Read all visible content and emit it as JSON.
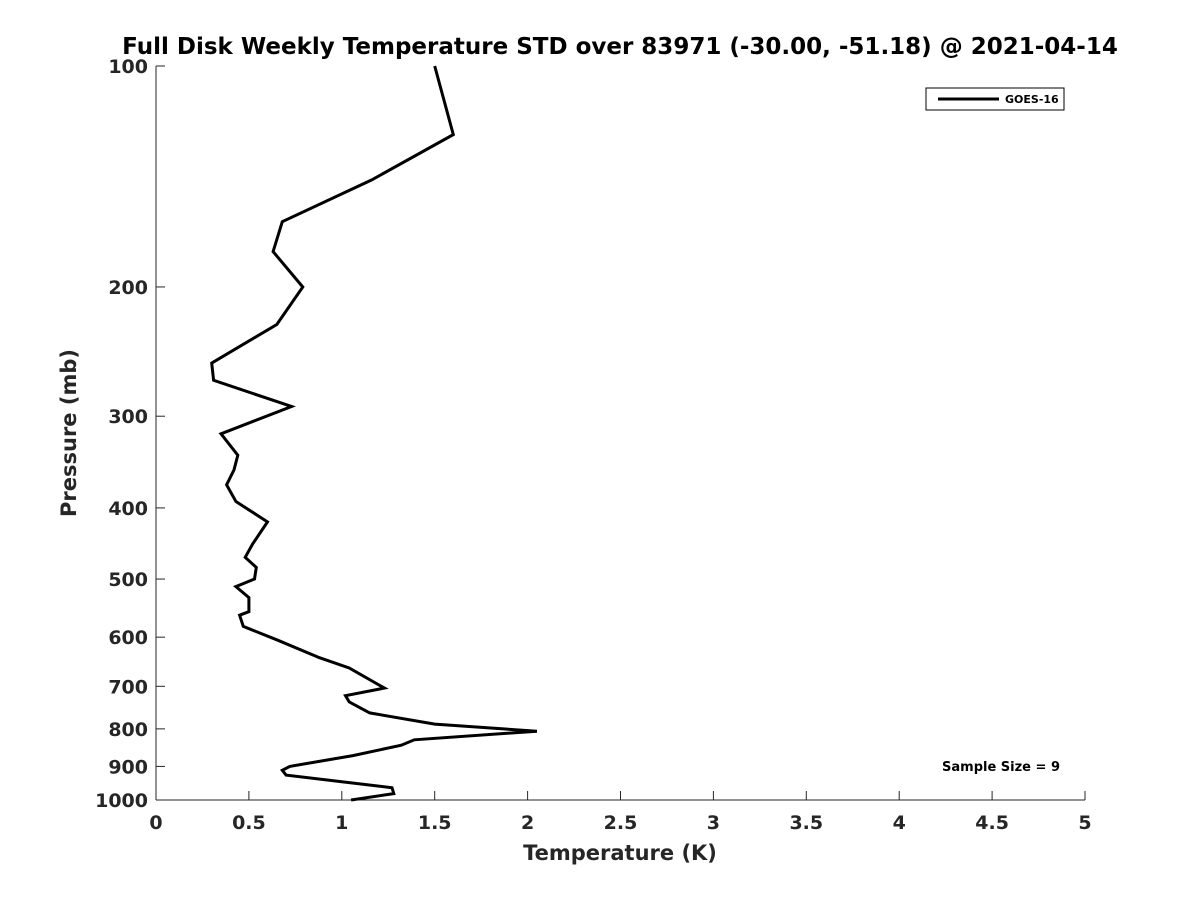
{
  "chart_data": {
    "type": "line",
    "title": "Full Disk Weekly Temperature STD over 83971 (-30.00, -51.18) @ 2021-04-14",
    "xlabel": "Temperature (K)",
    "ylabel": "Pressure (mb)",
    "xlim": [
      0,
      5
    ],
    "ylim": [
      100,
      1000
    ],
    "y_scale": "log",
    "y_reversed": true,
    "grid": false,
    "legend_position": "top-right",
    "xticks": [
      0,
      0.5,
      1,
      1.5,
      2,
      2.5,
      3,
      3.5,
      4,
      4.5,
      5
    ],
    "xtick_labels": [
      "0",
      "0.5",
      "1",
      "1.5",
      "2",
      "2.5",
      "3",
      "3.5",
      "4",
      "4.5",
      "5"
    ],
    "yticks": [
      100,
      200,
      300,
      400,
      500,
      600,
      700,
      800,
      900,
      1000
    ],
    "ytick_labels": [
      "100",
      "200",
      "300",
      "400",
      "500",
      "600",
      "700",
      "800",
      "900",
      "1000"
    ],
    "annotation": "Sample Size = 9",
    "series": [
      {
        "name": "GOES-16",
        "color": "#000000",
        "points": [
          [
            1.5,
            100
          ],
          [
            1.6,
            124
          ],
          [
            1.16,
            143
          ],
          [
            0.68,
            163
          ],
          [
            0.63,
            179
          ],
          [
            0.79,
            200
          ],
          [
            0.65,
            225
          ],
          [
            0.3,
            254
          ],
          [
            0.31,
            268
          ],
          [
            0.73,
            291
          ],
          [
            0.35,
            317
          ],
          [
            0.44,
            339
          ],
          [
            0.42,
            355
          ],
          [
            0.38,
            372
          ],
          [
            0.43,
            392
          ],
          [
            0.6,
            418
          ],
          [
            0.52,
            448
          ],
          [
            0.48,
            467
          ],
          [
            0.54,
            482
          ],
          [
            0.53,
            500
          ],
          [
            0.43,
            512
          ],
          [
            0.5,
            530
          ],
          [
            0.5,
            554
          ],
          [
            0.45,
            560
          ],
          [
            0.47,
            580
          ],
          [
            0.65,
            605
          ],
          [
            0.88,
            640
          ],
          [
            1.04,
            661
          ],
          [
            1.23,
            704
          ],
          [
            1.02,
            721
          ],
          [
            1.04,
            735
          ],
          [
            1.15,
            761
          ],
          [
            1.5,
            788
          ],
          [
            2.05,
            806
          ],
          [
            1.39,
            828
          ],
          [
            1.32,
            842
          ],
          [
            1.06,
            870
          ],
          [
            0.72,
            900
          ],
          [
            0.68,
            911
          ],
          [
            0.7,
            925
          ],
          [
            1.04,
            947
          ],
          [
            1.27,
            962
          ],
          [
            1.28,
            980
          ],
          [
            1.05,
            1000
          ]
        ]
      }
    ]
  }
}
